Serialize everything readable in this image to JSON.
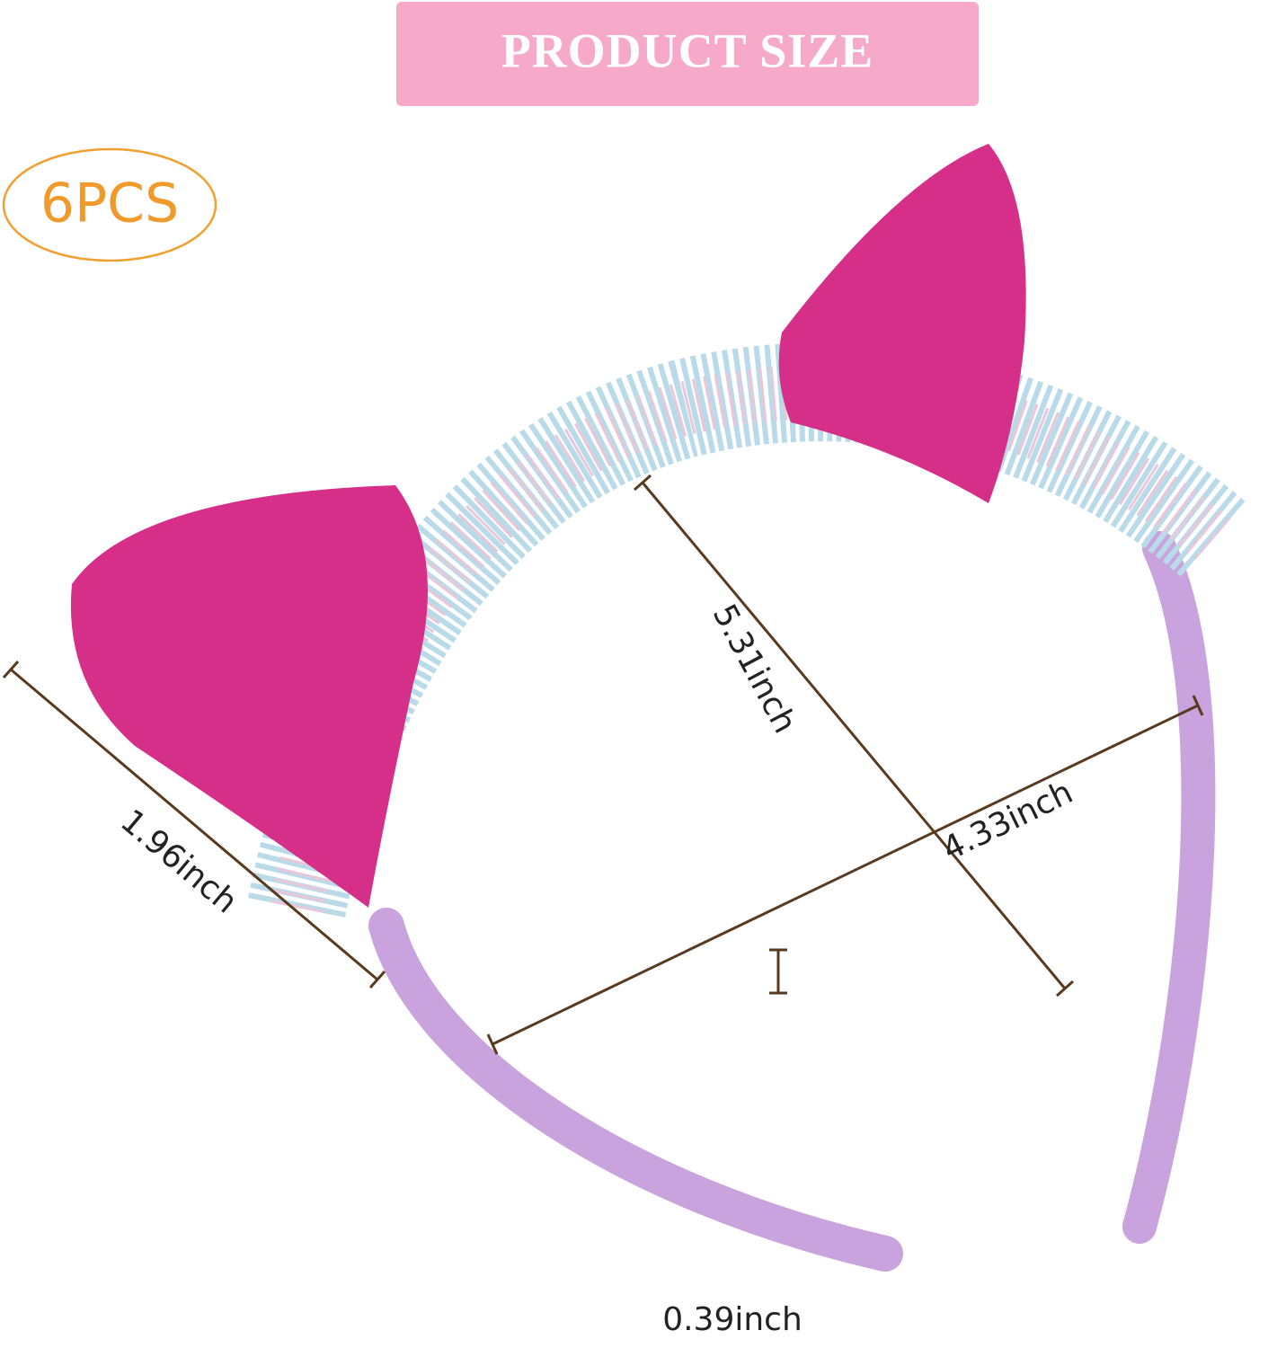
{
  "header": {
    "title": "PRODUCT SIZE",
    "badge": "6PCS"
  },
  "dimensions": {
    "height": "5.31inch",
    "width": "4.33inch",
    "ear": "1.96inch",
    "band": "0.39inch"
  }
}
